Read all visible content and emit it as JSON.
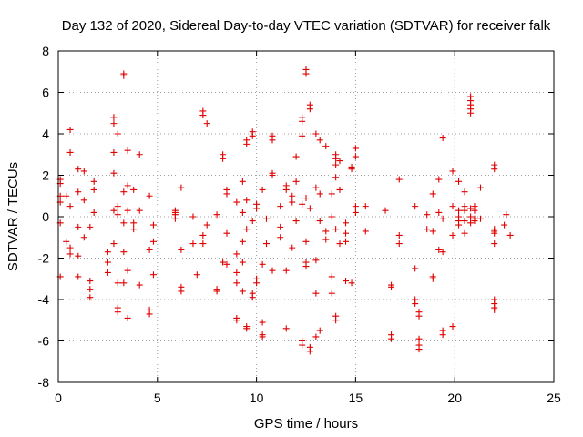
{
  "chart_data": {
    "type": "scatter",
    "title": "Day 132 of 2020, Sidereal Day-to-day VTEC variation (SDTVAR) for receiver falk",
    "xlabel": "GPS time / hours",
    "ylabel": "SDTVAR / TECUs",
    "xlim": [
      0,
      25
    ],
    "ylim": [
      -8,
      8
    ],
    "xticks": [
      0,
      5,
      10,
      15,
      20,
      25
    ],
    "yticks": [
      -8,
      -6,
      -4,
      -2,
      0,
      2,
      4,
      6,
      8
    ],
    "grid": true,
    "marker": "+",
    "color": "#e00000",
    "series": [
      {
        "name": "SDTVAR",
        "points": [
          [
            0.1,
            1.8
          ],
          [
            0.1,
            1.6
          ],
          [
            0.1,
            1.0
          ],
          [
            0.1,
            0.7
          ],
          [
            0.1,
            -0.3
          ],
          [
            0.1,
            -2.9
          ],
          [
            0.4,
            1.0
          ],
          [
            0.4,
            -1.2
          ],
          [
            0.6,
            4.2
          ],
          [
            0.6,
            3.1
          ],
          [
            0.6,
            0.5
          ],
          [
            0.6,
            -1.5
          ],
          [
            0.6,
            -1.8
          ],
          [
            1.0,
            2.3
          ],
          [
            1.0,
            1.2
          ],
          [
            1.0,
            -0.5
          ],
          [
            1.0,
            -1.9
          ],
          [
            1.0,
            -2.9
          ],
          [
            1.3,
            2.2
          ],
          [
            1.3,
            0.8
          ],
          [
            1.3,
            -1.0
          ],
          [
            1.6,
            -0.5
          ],
          [
            1.6,
            -3.1
          ],
          [
            1.6,
            -3.5
          ],
          [
            1.6,
            -3.9
          ],
          [
            1.8,
            1.7
          ],
          [
            1.8,
            1.3
          ],
          [
            1.8,
            0.2
          ],
          [
            2.5,
            -1.7
          ],
          [
            2.5,
            -2.2
          ],
          [
            2.5,
            -2.7
          ],
          [
            2.8,
            4.8
          ],
          [
            2.8,
            4.5
          ],
          [
            2.8,
            3.1
          ],
          [
            2.8,
            2.1
          ],
          [
            2.8,
            0.3
          ],
          [
            2.8,
            -1.3
          ],
          [
            3.0,
            4.0
          ],
          [
            3.0,
            0.5
          ],
          [
            3.0,
            0.1
          ],
          [
            3.0,
            -3.2
          ],
          [
            3.0,
            -4.4
          ],
          [
            3.0,
            -4.6
          ],
          [
            3.3,
            6.9
          ],
          [
            3.3,
            6.8
          ],
          [
            3.3,
            1.2
          ],
          [
            3.3,
            -0.3
          ],
          [
            3.3,
            -1.7
          ],
          [
            3.3,
            -3.2
          ],
          [
            3.5,
            3.2
          ],
          [
            3.5,
            1.5
          ],
          [
            3.5,
            0.3
          ],
          [
            3.5,
            -2.6
          ],
          [
            3.5,
            -4.9
          ],
          [
            3.8,
            1.3
          ],
          [
            3.8,
            -0.3
          ],
          [
            3.8,
            -0.6
          ],
          [
            4.1,
            3.0
          ],
          [
            4.1,
            0.3
          ],
          [
            4.1,
            -3.3
          ],
          [
            4.6,
            1.0
          ],
          [
            4.6,
            -1.6
          ],
          [
            4.6,
            -4.5
          ],
          [
            4.6,
            -4.7
          ],
          [
            4.8,
            -0.4
          ],
          [
            4.8,
            -1.2
          ],
          [
            4.8,
            -2.8
          ],
          [
            5.9,
            0.3
          ],
          [
            5.9,
            0.1
          ],
          [
            5.9,
            -0.1
          ],
          [
            5.9,
            0.2
          ],
          [
            6.2,
            1.4
          ],
          [
            6.2,
            -1.6
          ],
          [
            6.2,
            -3.4
          ],
          [
            6.2,
            -3.6
          ],
          [
            6.8,
            0.0
          ],
          [
            6.8,
            -1.3
          ],
          [
            7.0,
            -2.8
          ],
          [
            7.3,
            5.1
          ],
          [
            7.3,
            4.9
          ],
          [
            7.3,
            -0.9
          ],
          [
            7.3,
            -1.3
          ],
          [
            7.5,
            4.5
          ],
          [
            7.5,
            -0.4
          ],
          [
            8.0,
            -3.5
          ],
          [
            8.0,
            -3.6
          ],
          [
            8.0,
            0.1
          ],
          [
            8.3,
            3.0
          ],
          [
            8.3,
            2.8
          ],
          [
            8.3,
            -2.2
          ],
          [
            8.5,
            1.3
          ],
          [
            8.5,
            1.1
          ],
          [
            8.5,
            -0.8
          ],
          [
            8.5,
            -2.3
          ],
          [
            9.0,
            0.7
          ],
          [
            9.0,
            -1.8
          ],
          [
            9.0,
            -2.7
          ],
          [
            9.0,
            -3.2
          ],
          [
            9.0,
            -4.9
          ],
          [
            9.0,
            -5.0
          ],
          [
            9.3,
            1.7
          ],
          [
            9.3,
            0.2
          ],
          [
            9.3,
            -1.2
          ],
          [
            9.3,
            -2.2
          ],
          [
            9.3,
            -3.6
          ],
          [
            9.5,
            3.7
          ],
          [
            9.5,
            3.5
          ],
          [
            9.5,
            0.8
          ],
          [
            9.5,
            -0.6
          ],
          [
            9.5,
            -5.3
          ],
          [
            9.5,
            -5.4
          ],
          [
            9.8,
            4.1
          ],
          [
            9.8,
            3.9
          ],
          [
            9.8,
            -0.2
          ],
          [
            9.8,
            -3.7
          ],
          [
            9.8,
            -3.9
          ],
          [
            10.0,
            0.6
          ],
          [
            10.0,
            0.4
          ],
          [
            10.0,
            -3.0
          ],
          [
            10.0,
            -3.2
          ],
          [
            10.3,
            1.3
          ],
          [
            10.3,
            -2.3
          ],
          [
            10.3,
            -5.1
          ],
          [
            10.3,
            -5.7
          ],
          [
            10.3,
            -5.8
          ],
          [
            10.5,
            -0.1
          ],
          [
            10.5,
            -1.3
          ],
          [
            10.8,
            3.9
          ],
          [
            10.8,
            3.7
          ],
          [
            10.8,
            2.1
          ],
          [
            10.8,
            2.0
          ],
          [
            10.8,
            -2.6
          ],
          [
            11.2,
            0.5
          ],
          [
            11.2,
            -0.5
          ],
          [
            11.2,
            -1.0
          ],
          [
            11.5,
            1.5
          ],
          [
            11.5,
            1.3
          ],
          [
            11.5,
            -2.6
          ],
          [
            11.5,
            -5.4
          ],
          [
            11.8,
            1.0
          ],
          [
            11.8,
            0.7
          ],
          [
            11.8,
            -1.5
          ],
          [
            12.0,
            2.9
          ],
          [
            12.0,
            1.7
          ],
          [
            12.0,
            -0.2
          ],
          [
            12.3,
            4.8
          ],
          [
            12.3,
            4.6
          ],
          [
            12.3,
            3.9
          ],
          [
            12.3,
            0.6
          ],
          [
            12.3,
            -6.0
          ],
          [
            12.3,
            -6.2
          ],
          [
            12.5,
            7.1
          ],
          [
            12.5,
            6.9
          ],
          [
            12.5,
            0.9
          ],
          [
            12.5,
            -1.2
          ],
          [
            12.5,
            -2.2
          ],
          [
            12.5,
            -2.4
          ],
          [
            12.7,
            5.4
          ],
          [
            12.7,
            5.2
          ],
          [
            12.7,
            0.4
          ],
          [
            12.7,
            -6.3
          ],
          [
            12.7,
            -6.5
          ],
          [
            13.0,
            4.0
          ],
          [
            13.0,
            1.4
          ],
          [
            13.0,
            -2.1
          ],
          [
            13.0,
            -3.7
          ],
          [
            13.0,
            -5.8
          ],
          [
            13.2,
            3.7
          ],
          [
            13.2,
            1.1
          ],
          [
            13.2,
            -0.2
          ],
          [
            13.2,
            -5.5
          ],
          [
            13.5,
            3.4
          ],
          [
            13.5,
            -0.7
          ],
          [
            13.5,
            -1.1
          ],
          [
            13.8,
            1.1
          ],
          [
            13.8,
            0.0
          ],
          [
            13.8,
            -2.9
          ],
          [
            13.8,
            -3.7
          ],
          [
            14.0,
            3.0
          ],
          [
            14.0,
            2.8
          ],
          [
            14.0,
            2.5
          ],
          [
            14.0,
            1.9
          ],
          [
            14.0,
            -0.6
          ],
          [
            14.0,
            -4.8
          ],
          [
            14.0,
            -5.0
          ],
          [
            14.2,
            2.7
          ],
          [
            14.2,
            1.3
          ],
          [
            14.2,
            -1.3
          ],
          [
            14.5,
            -0.3
          ],
          [
            14.5,
            -0.8
          ],
          [
            14.5,
            -1.2
          ],
          [
            14.5,
            -3.1
          ],
          [
            14.8,
            2.4
          ],
          [
            14.8,
            2.3
          ],
          [
            14.8,
            -3.2
          ],
          [
            15.0,
            3.3
          ],
          [
            15.0,
            2.9
          ],
          [
            15.0,
            0.5
          ],
          [
            15.0,
            0.2
          ],
          [
            15.5,
            0.5
          ],
          [
            15.5,
            -0.7
          ],
          [
            16.5,
            0.3
          ],
          [
            16.8,
            -3.3
          ],
          [
            16.8,
            -3.4
          ],
          [
            16.8,
            -5.7
          ],
          [
            16.8,
            -5.9
          ],
          [
            17.2,
            1.8
          ],
          [
            17.2,
            -0.9
          ],
          [
            17.2,
            -1.3
          ],
          [
            18.0,
            0.5
          ],
          [
            18.0,
            -2.5
          ],
          [
            18.0,
            -4.0
          ],
          [
            18.0,
            -4.2
          ],
          [
            18.2,
            -4.6
          ],
          [
            18.2,
            -4.8
          ],
          [
            18.2,
            -5.9
          ],
          [
            18.2,
            -6.2
          ],
          [
            18.2,
            -6.4
          ],
          [
            18.6,
            0.1
          ],
          [
            18.6,
            -0.6
          ],
          [
            18.9,
            1.1
          ],
          [
            18.9,
            -0.7
          ],
          [
            18.9,
            -2.9
          ],
          [
            18.9,
            -3.0
          ],
          [
            19.2,
            1.8
          ],
          [
            19.2,
            0.2
          ],
          [
            19.2,
            -1.6
          ],
          [
            19.4,
            3.8
          ],
          [
            19.4,
            -0.1
          ],
          [
            19.4,
            -1.7
          ],
          [
            19.4,
            -5.5
          ],
          [
            19.4,
            -5.7
          ],
          [
            19.9,
            2.2
          ],
          [
            19.9,
            0.5
          ],
          [
            19.9,
            -0.9
          ],
          [
            19.9,
            -5.3
          ],
          [
            20.2,
            1.7
          ],
          [
            20.2,
            0.3
          ],
          [
            20.2,
            0.0
          ],
          [
            20.2,
            -0.2
          ],
          [
            20.2,
            -0.4
          ],
          [
            20.5,
            1.2
          ],
          [
            20.5,
            0.5
          ],
          [
            20.5,
            0.3
          ],
          [
            20.5,
            -0.2
          ],
          [
            20.5,
            -0.8
          ],
          [
            20.8,
            5.8
          ],
          [
            20.8,
            5.6
          ],
          [
            20.8,
            5.4
          ],
          [
            20.8,
            5.2
          ],
          [
            20.8,
            5.0
          ],
          [
            20.8,
            0.4
          ],
          [
            20.8,
            0.0
          ],
          [
            20.8,
            -0.3
          ],
          [
            21.0,
            0.5
          ],
          [
            21.0,
            0.3
          ],
          [
            21.0,
            -0.1
          ],
          [
            21.0,
            -0.2
          ],
          [
            21.3,
            1.4
          ],
          [
            21.3,
            -0.1
          ],
          [
            22.0,
            2.5
          ],
          [
            22.0,
            2.3
          ],
          [
            22.0,
            -0.6
          ],
          [
            22.0,
            -0.7
          ],
          [
            22.0,
            -0.8
          ],
          [
            22.0,
            -1.3
          ],
          [
            22.0,
            -4.0
          ],
          [
            22.0,
            -4.2
          ],
          [
            22.0,
            -4.4
          ],
          [
            22.0,
            -4.5
          ],
          [
            22.5,
            -0.4
          ],
          [
            22.6,
            0.1
          ],
          [
            22.8,
            -0.9
          ]
        ]
      }
    ]
  }
}
